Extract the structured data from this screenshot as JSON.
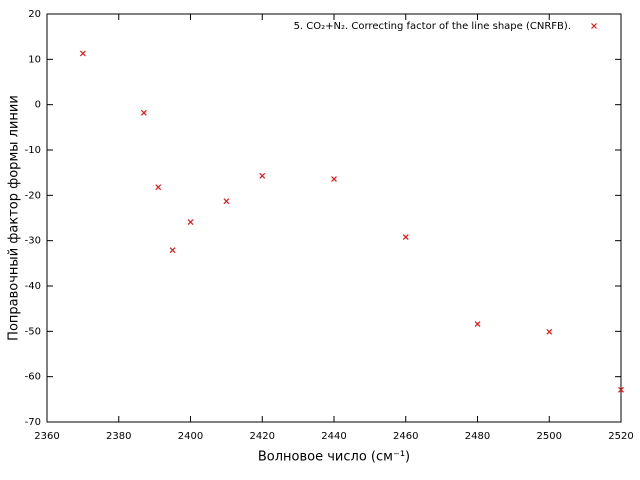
{
  "chart_data": {
    "type": "scatter",
    "x_label": "Волновое число (см⁻¹)",
    "y_label": "Поправочный фактор формы линии",
    "series": [
      {
        "name": "5. CO₂+N₂. Correcting factor of the line shape (CNRFB).",
        "color": "#e41a1c",
        "x": [
          2370,
          2387,
          2391,
          2395,
          2400,
          2410,
          2420,
          2440,
          2460,
          2480,
          2500,
          2520
        ],
        "values": [
          11.3,
          -1.8,
          -18.2,
          -32.1,
          -25.9,
          -21.3,
          -15.7,
          -16.4,
          -29.2,
          -48.4,
          -50.1,
          -62.9
        ]
      }
    ],
    "xlim": [
      2360,
      2520
    ],
    "xticks": [
      2360,
      2380,
      2400,
      2420,
      2440,
      2460,
      2480,
      2500,
      2520
    ],
    "ylim": [
      -70,
      20
    ],
    "yticks": [
      -70,
      -60,
      -50,
      -40,
      -30,
      -20,
      -10,
      0,
      10,
      20
    ],
    "legend": "top-right",
    "grid": false
  }
}
